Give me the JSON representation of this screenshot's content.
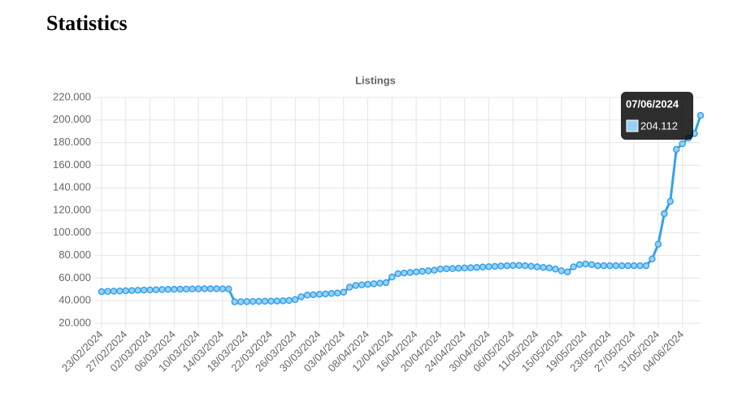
{
  "page_title": "Statistics",
  "chart_data": {
    "type": "line",
    "title": "Listings",
    "categories": [
      "23/02/2024",
      null,
      null,
      null,
      "27/02/2024",
      null,
      null,
      null,
      "02/03/2024",
      null,
      null,
      null,
      "06/03/2024",
      null,
      null,
      null,
      "10/03/2024",
      null,
      null,
      null,
      "14/03/2024",
      null,
      null,
      null,
      "18/03/2024",
      null,
      null,
      null,
      "22/03/2024",
      null,
      null,
      null,
      "26/03/2024",
      null,
      null,
      null,
      "30/03/2024",
      null,
      null,
      null,
      "03/04/2024",
      null,
      null,
      null,
      "08/04/2024",
      null,
      null,
      null,
      "12/04/2024",
      null,
      null,
      null,
      "16/04/2024",
      null,
      null,
      null,
      "20/04/2024",
      null,
      null,
      null,
      "24/04/2024",
      null,
      null,
      null,
      "30/04/2024",
      null,
      null,
      null,
      "06/05/2024",
      null,
      null,
      null,
      "11/05/2024",
      null,
      null,
      null,
      "15/05/2024",
      null,
      null,
      null,
      "19/05/2024",
      null,
      null,
      null,
      "23/05/2024",
      null,
      null,
      null,
      "27/05/2024",
      null,
      null,
      null,
      "31/05/2024",
      null,
      null,
      null,
      "04/06/2024",
      null,
      null,
      null
    ],
    "series": [
      {
        "name": "Listings",
        "color": "#36a2eb",
        "point_fill": "#9ad0f5",
        "values": [
          48000,
          48200,
          48400,
          48600,
          48800,
          49000,
          49200,
          49400,
          49500,
          49700,
          49900,
          50000,
          50100,
          50200,
          50300,
          50400,
          50500,
          50600,
          50600,
          50600,
          50500,
          50400,
          39000,
          39100,
          39200,
          39300,
          39400,
          39500,
          39600,
          39700,
          39900,
          40200,
          41000,
          43500,
          45000,
          45300,
          45600,
          46000,
          46400,
          46800,
          47500,
          52000,
          53500,
          54000,
          54500,
          55000,
          55500,
          56000,
          61000,
          64000,
          64500,
          65000,
          65500,
          66000,
          66500,
          67000,
          68000,
          68300,
          68500,
          68700,
          69000,
          69200,
          69500,
          69800,
          70100,
          70400,
          70700,
          71000,
          71200,
          71300,
          71000,
          70500,
          70000,
          69500,
          69000,
          68000,
          66500,
          65500,
          70000,
          72000,
          72500,
          72000,
          71000,
          71000,
          71000,
          71000,
          71000,
          71000,
          71000,
          71000,
          71000,
          77000,
          90000,
          117000,
          128000,
          174000,
          179000,
          184000,
          188000,
          204112
        ]
      }
    ],
    "ylim": [
      20000,
      220000
    ],
    "yticks": [
      {
        "value": 20000,
        "label": "20.000"
      },
      {
        "value": 40000,
        "label": "40.000"
      },
      {
        "value": 60000,
        "label": "60.000"
      },
      {
        "value": 80000,
        "label": "80.000"
      },
      {
        "value": 100000,
        "label": "100.000"
      },
      {
        "value": 120000,
        "label": "120.000"
      },
      {
        "value": 140000,
        "label": "140.000"
      },
      {
        "value": 160000,
        "label": "160.000"
      },
      {
        "value": 180000,
        "label": "180.000"
      },
      {
        "value": 200000,
        "label": "200.000"
      },
      {
        "value": 220000,
        "label": "220.000"
      }
    ],
    "grid": true,
    "tooltip": {
      "title": "07/06/2024",
      "value_label": "204.112"
    }
  }
}
